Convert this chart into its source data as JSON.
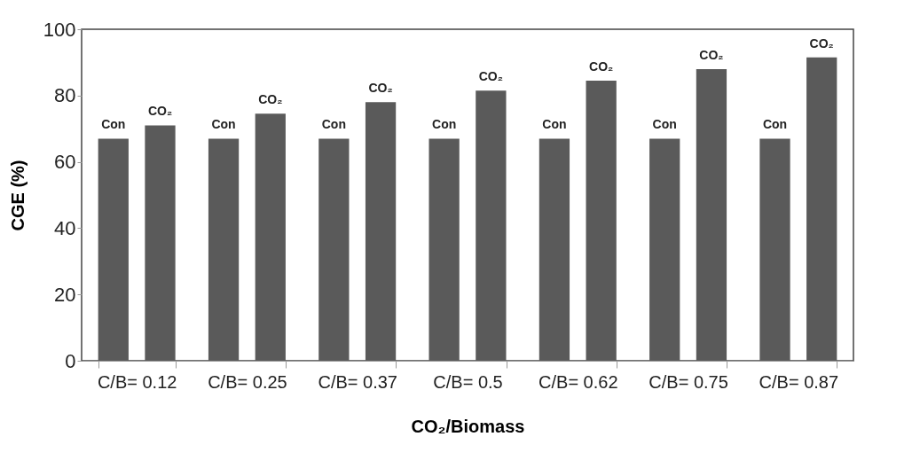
{
  "chart_data": {
    "type": "bar",
    "xlabel": "CO₂/Biomass",
    "ylabel": "CGE (%)",
    "categories": [
      "C/B= 0.12",
      "C/B= 0.25",
      "C/B= 0.37",
      "C/B= 0.5",
      "C/B= 0.62",
      "C/B= 0.75",
      "C/B= 0.87"
    ],
    "series": [
      {
        "name": "Con",
        "color": "#5a5a5a",
        "values": [
          67,
          67,
          67,
          67,
          67,
          67,
          67
        ]
      },
      {
        "name": "CO₂",
        "color": "#5a5a5a",
        "values": [
          71,
          74.5,
          78,
          81.5,
          84.5,
          88,
          91.5
        ]
      }
    ],
    "ylim": [
      0,
      100
    ],
    "yticks": [
      0,
      20,
      40,
      60,
      80,
      100
    ],
    "grid": false,
    "legend": false
  }
}
